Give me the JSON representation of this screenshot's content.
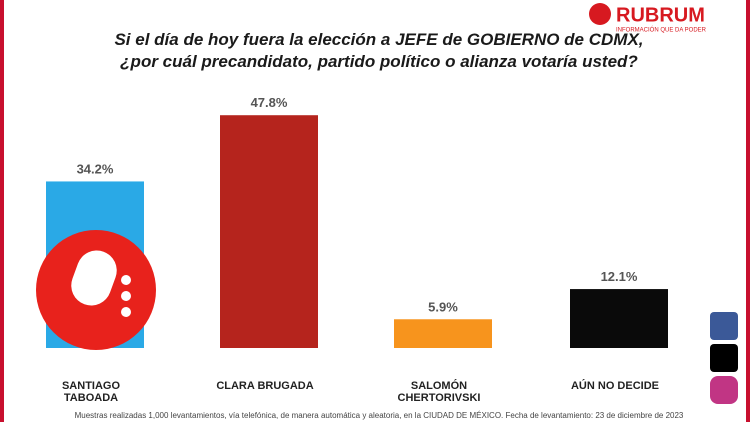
{
  "brand": {
    "name": "RUBRUM",
    "tagline": "INFORMACIÓN QUE DA PODER"
  },
  "chart_data": {
    "type": "bar",
    "title": "Si el día de hoy fuera la elección a JEFE de GOBIERNO de CDMX,",
    "subtitle": "¿por cuál precandidato, partido político o alianza votaría usted?",
    "categories": [
      "SANTIAGO TABOADA",
      "CLARA BRUGADA",
      "SALOMÓN CHERTORIVSKI",
      "AÚN NO DECIDE"
    ],
    "values": [
      34.2,
      47.8,
      5.9,
      12.1
    ],
    "value_labels": [
      "34.2%",
      "47.8%",
      "5.9%",
      "12.1%"
    ],
    "colors": [
      "#2aa9e6",
      "#b5241d",
      "#f7941d",
      "#0a0a0a"
    ]
  },
  "footnote": "Muestras realizadas 1,000 levantamientos, vía telefónica, de manera automática y aleatoria, en la CIUDAD DE MÉXICO. Fecha de levantamiento: 23 de diciembre de 2023"
}
